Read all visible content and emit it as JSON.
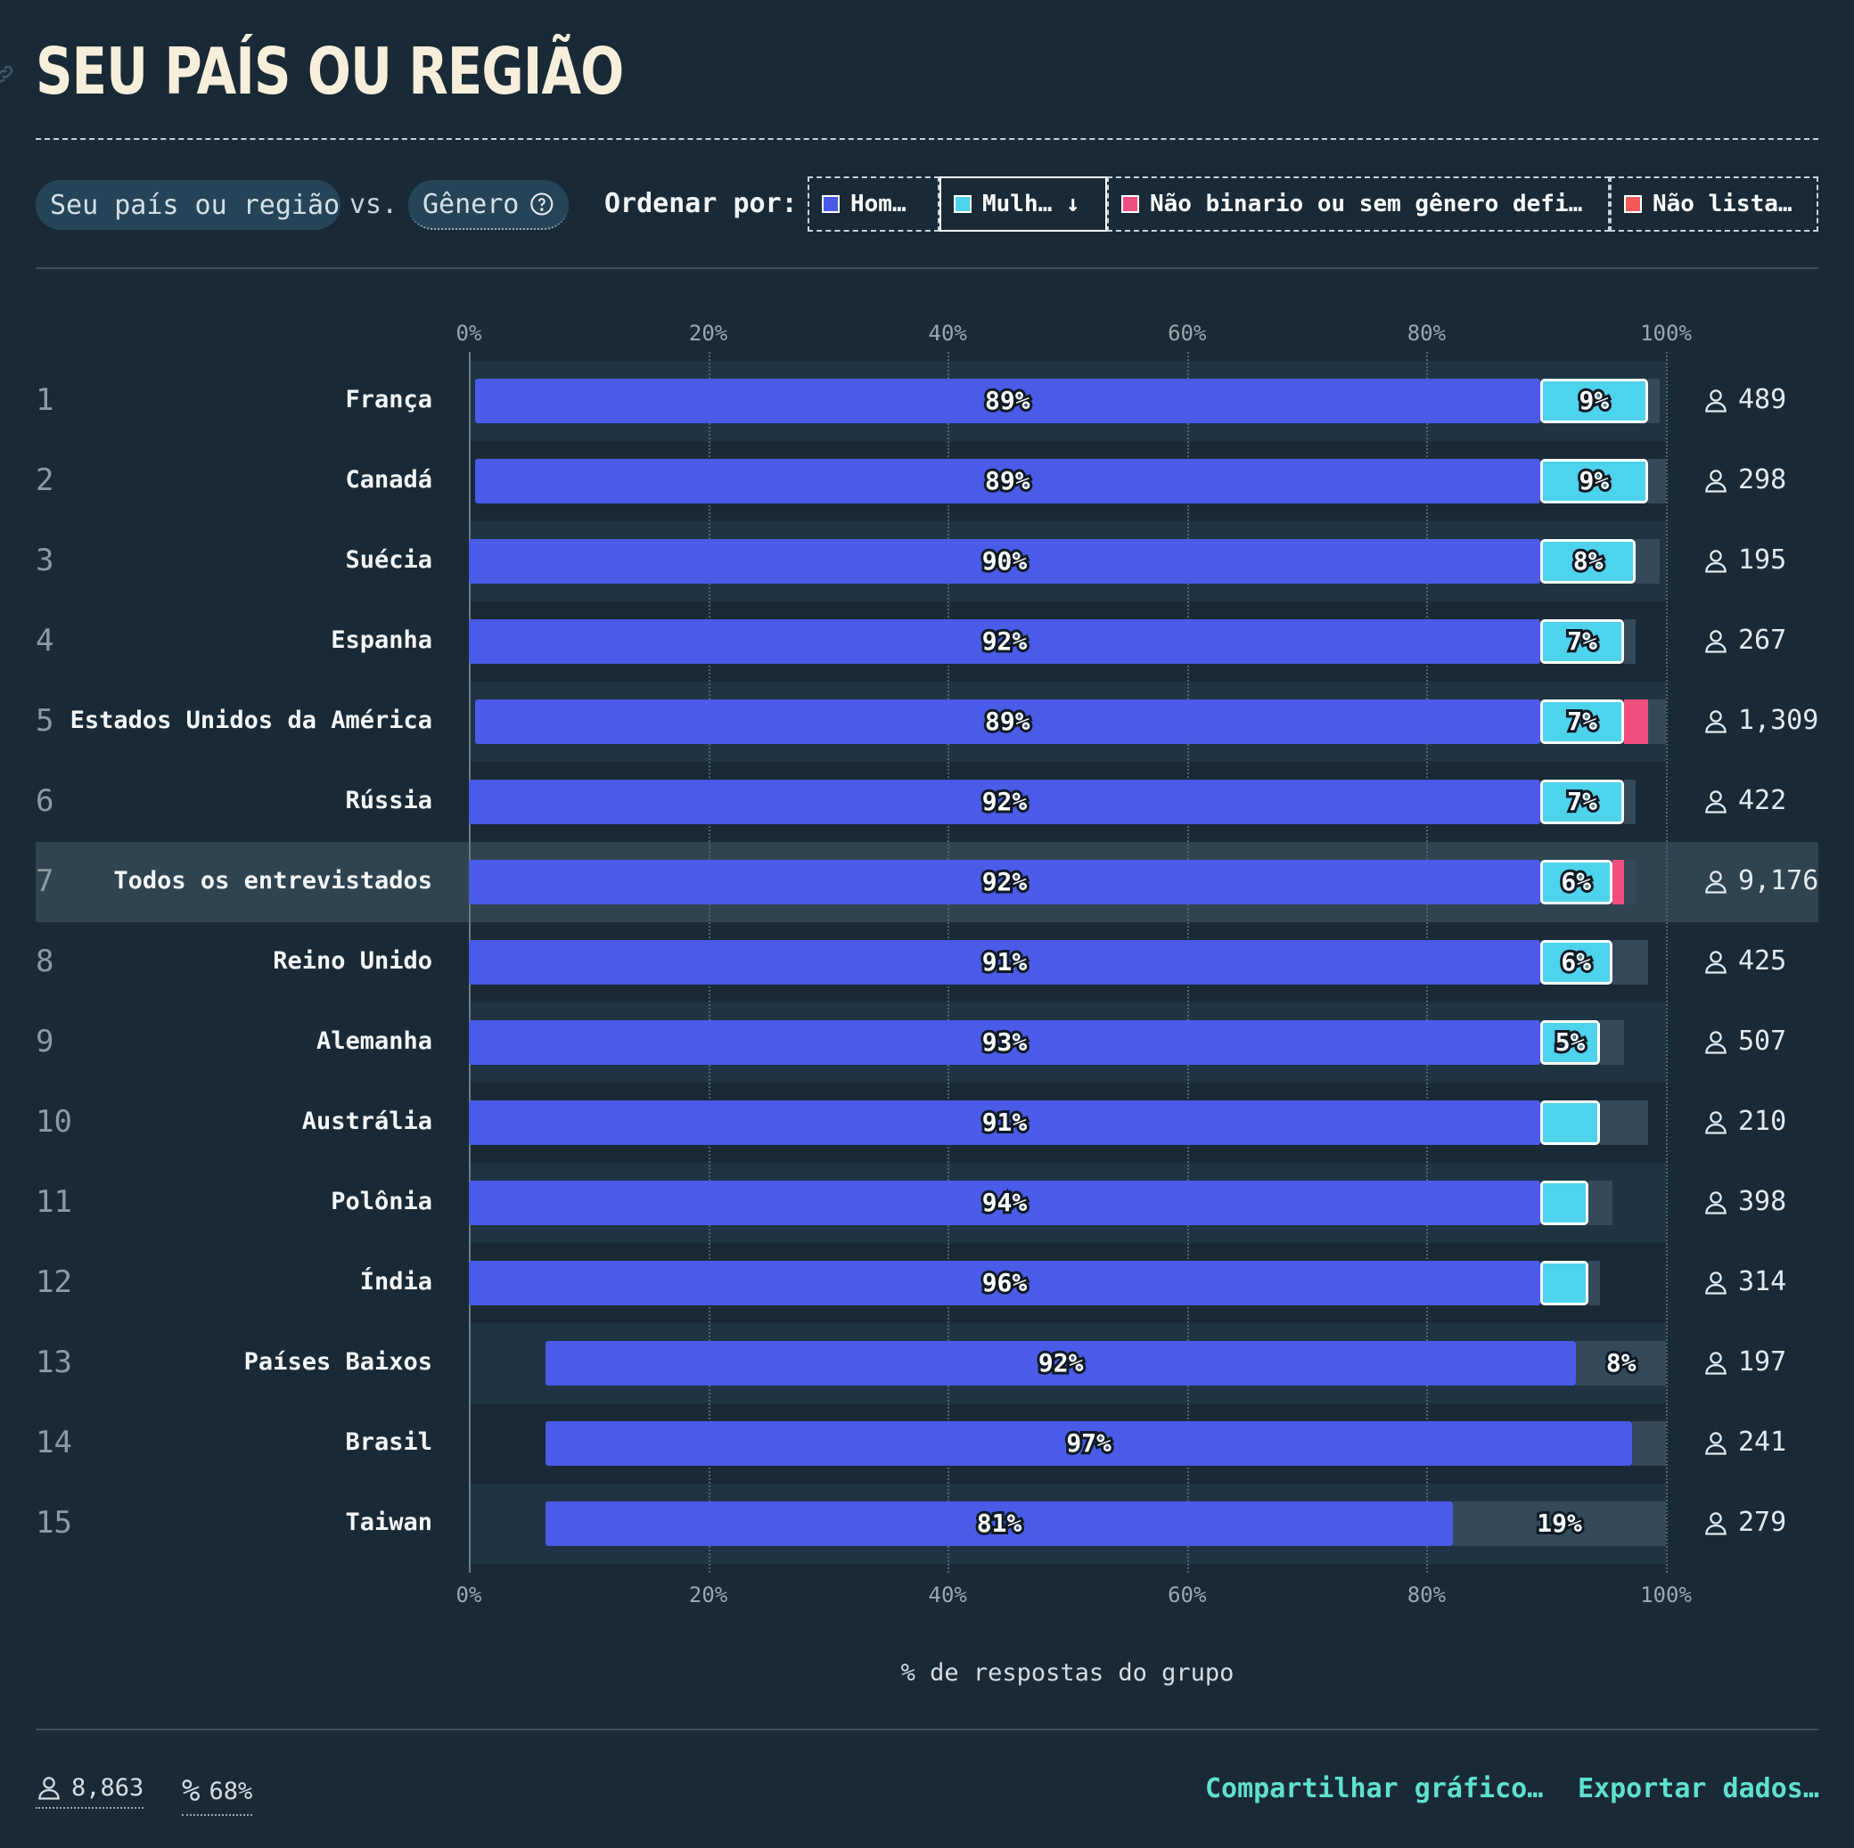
{
  "header": {
    "title": "SEU PAÍS OU REGIÃO"
  },
  "controls": {
    "var1": "Seu país ou região",
    "vs": "vs.",
    "var2": "Gênero",
    "sort_label": "Ordenar por:",
    "sort_buttons": [
      {
        "label": "Hom…",
        "color": "#4a5be8"
      },
      {
        "label": "Mulh… ↓",
        "color": "#4ed3ec"
      },
      {
        "label": "Não binario ou sem gênero defi…",
        "color": "#ef4f7f"
      },
      {
        "label": "Não lista…",
        "color": "#f25a5a"
      }
    ]
  },
  "chart_data": {
    "type": "bar",
    "stacked": true,
    "orientation": "horizontal",
    "xlabel": "% de respostas do grupo",
    "xlim": [
      0,
      100
    ],
    "xticks": [
      "0%",
      "20%",
      "40%",
      "60%",
      "80%",
      "100%"
    ],
    "series_names": [
      "Hom…",
      "Mulh…",
      "Não binario ou sem gênero defi…",
      "Não lista…"
    ],
    "highlighted_category": "Todos os entrevistados",
    "rows": [
      {
        "rank": "1",
        "category": "França",
        "men": 89,
        "women": 9,
        "other": 1,
        "men_label": "89%",
        "women_label": "9%",
        "count": "489"
      },
      {
        "rank": "2",
        "category": "Canadá",
        "men": 89,
        "women": 9,
        "other": 2,
        "men_label": "89%",
        "women_label": "9%",
        "count": "298"
      },
      {
        "rank": "3",
        "category": "Suécia",
        "men": 90,
        "women": 8,
        "other": 2,
        "men_label": "90%",
        "women_label": "8%",
        "count": "195"
      },
      {
        "rank": "4",
        "category": "Espanha",
        "men": 92,
        "women": 7,
        "other": 1,
        "men_label": "92%",
        "women_label": "7%",
        "count": "267"
      },
      {
        "rank": "5",
        "category": "Estados Unidos da América",
        "men": 89,
        "women": 7,
        "nonbinary": 2,
        "other": 2,
        "men_label": "89%",
        "women_label": "7%",
        "count": "1,309"
      },
      {
        "rank": "6",
        "category": "Rússia",
        "men": 92,
        "women": 7,
        "other": 1,
        "men_label": "92%",
        "women_label": "7%",
        "count": "422"
      },
      {
        "rank": "7",
        "category": "Todos os entrevistados",
        "men": 92,
        "women": 6,
        "nonbinary": 1,
        "other": 1,
        "men_label": "92%",
        "women_label": "6%",
        "count": "9,176"
      },
      {
        "rank": "8",
        "category": "Reino Unido",
        "men": 91,
        "women": 6,
        "other": 3,
        "men_label": "91%",
        "women_label": "6%",
        "count": "425"
      },
      {
        "rank": "9",
        "category": "Alemanha",
        "men": 93,
        "women": 5,
        "other": 2,
        "men_label": "93%",
        "women_label": "5%",
        "count": "507"
      },
      {
        "rank": "10",
        "category": "Austrália",
        "men": 91,
        "women": 5,
        "other": 4,
        "men_label": "91%",
        "women_label": "",
        "count": "210"
      },
      {
        "rank": "11",
        "category": "Polônia",
        "men": 94,
        "women": 4,
        "other": 2,
        "men_label": "94%",
        "women_label": "",
        "count": "398"
      },
      {
        "rank": "12",
        "category": "Índia",
        "men": 96,
        "women": 4,
        "other": 1,
        "men_label": "96%",
        "women_label": "",
        "count": "314"
      },
      {
        "rank": "13",
        "category": "Países Baixos",
        "men": 92,
        "women": 0,
        "other": 8,
        "men_label": "92%",
        "women_label": "",
        "other_label": "8%",
        "count": "197"
      },
      {
        "rank": "14",
        "category": "Brasil",
        "men": 97,
        "women": 0,
        "other": 3,
        "men_label": "97%",
        "women_label": "",
        "count": "241"
      },
      {
        "rank": "15",
        "category": "Taiwan",
        "men": 81,
        "women": 0,
        "other": 19,
        "men_label": "81%",
        "women_label": "",
        "other_label": "19%",
        "count": "279"
      }
    ]
  },
  "footer": {
    "respondents": "8,863",
    "percent": "68%",
    "share": "Compartilhar gráfico…",
    "export": "Exportar dados…"
  }
}
